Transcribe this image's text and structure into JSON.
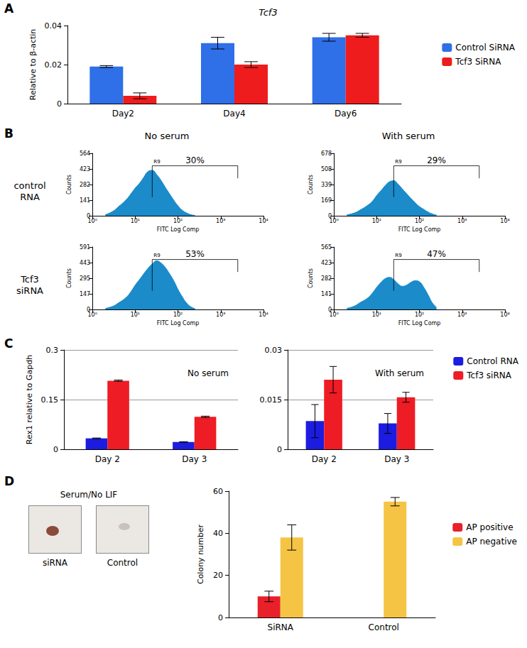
{
  "chart_data": [
    {
      "type": "bar",
      "title": "Tcf3",
      "y_label": "Relative to β-actin",
      "categories": [
        "Day2",
        "Day4",
        "Day6"
      ],
      "series": [
        {
          "name": "Control SiRNA",
          "color": "#2f6fe8",
          "values": [
            0.019,
            0.031,
            0.034
          ],
          "errors": [
            0.0005,
            0.003,
            0.002
          ]
        },
        {
          "name": "Tcf3 SiRNA",
          "color": "#ee1c1c",
          "values": [
            0.004,
            0.02,
            0.035
          ],
          "errors": [
            0.0015,
            0.0015,
            0.001
          ]
        }
      ],
      "ylim": [
        0,
        0.04
      ],
      "yticks": [
        0,
        0.02,
        0.04
      ],
      "grid": false,
      "legend": "right"
    },
    {
      "type": "area",
      "x_label": "FITC Log Comp",
      "y_label": "Counts",
      "color": "#1b8bc9",
      "log": "x",
      "x": [
        2,
        3,
        4,
        6,
        8,
        10,
        13,
        16,
        20,
        25,
        32,
        40,
        50,
        63,
        80,
        100,
        126,
        160,
        200,
        250
      ],
      "values": [
        10,
        40,
        80,
        140,
        200,
        250,
        300,
        350,
        400,
        410,
        370,
        320,
        260,
        200,
        140,
        90,
        50,
        25,
        10,
        3
      ],
      "xlim": [
        1,
        10000
      ],
      "xticks": [
        {
          "value": 1,
          "label": "10⁰"
        },
        {
          "value": 10,
          "label": "10¹"
        },
        {
          "value": 100,
          "label": "10²"
        },
        {
          "value": 1000,
          "label": "10³"
        },
        {
          "value": 10000,
          "label": "10⁴"
        }
      ],
      "ylim": [
        0,
        564
      ],
      "yticks": [
        0,
        141,
        282,
        423,
        564
      ],
      "grid": false,
      "gate": {
        "label": "R9",
        "range": [
          25,
          2500
        ],
        "text": "30%"
      }
    },
    {
      "type": "area",
      "x_label": "FITC Log Comp",
      "y_label": "Counts",
      "color": "#1b8bc9",
      "log": "x",
      "x": [
        2,
        3,
        4,
        6,
        8,
        10,
        13,
        16,
        20,
        25,
        32,
        40,
        50,
        63,
        80,
        100,
        126,
        160,
        200,
        250
      ],
      "values": [
        10,
        30,
        60,
        110,
        160,
        220,
        280,
        330,
        370,
        380,
        340,
        290,
        240,
        190,
        140,
        100,
        70,
        40,
        20,
        8
      ],
      "xlim": [
        1,
        10000
      ],
      "xticks": [
        {
          "value": 1,
          "label": "10⁰"
        },
        {
          "value": 10,
          "label": "10¹"
        },
        {
          "value": 100,
          "label": "10²"
        },
        {
          "value": 1000,
          "label": "10³"
        },
        {
          "value": 10000,
          "label": "10⁴"
        }
      ],
      "ylim": [
        0,
        678
      ],
      "yticks": [
        0,
        169,
        339,
        508,
        678
      ],
      "grid": false,
      "gate": {
        "label": "R9",
        "range": [
          25,
          2500
        ],
        "text": "29%"
      }
    },
    {
      "type": "area",
      "x_label": "FITC Log Comp",
      "y_label": "Counts",
      "color": "#1b8bc9",
      "log": "x",
      "x": [
        2,
        3,
        4,
        6,
        8,
        10,
        13,
        16,
        20,
        25,
        32,
        40,
        50,
        63,
        80,
        100,
        126,
        160,
        200,
        250
      ],
      "values": [
        10,
        30,
        60,
        110,
        170,
        230,
        290,
        340,
        390,
        430,
        460,
        440,
        400,
        340,
        270,
        190,
        120,
        60,
        25,
        8
      ],
      "xlim": [
        1,
        10000
      ],
      "xticks": [
        {
          "value": 1,
          "label": "10⁰"
        },
        {
          "value": 10,
          "label": "10¹"
        },
        {
          "value": 100,
          "label": "10²"
        },
        {
          "value": 1000,
          "label": "10³"
        },
        {
          "value": 10000,
          "label": "10⁴"
        }
      ],
      "ylim": [
        0,
        591
      ],
      "yticks": [
        0,
        147,
        295,
        443,
        591
      ],
      "grid": false,
      "gate": {
        "label": "R9",
        "range": [
          25,
          2500
        ],
        "text": "53%"
      }
    },
    {
      "type": "area",
      "x_label": "FITC Log Comp",
      "y_label": "Counts",
      "color": "#1b8bc9",
      "log": "x",
      "x": [
        2,
        3,
        4,
        6,
        8,
        10,
        13,
        16,
        20,
        25,
        32,
        40,
        50,
        63,
        80,
        100,
        126,
        160,
        200,
        250
      ],
      "values": [
        10,
        30,
        60,
        100,
        150,
        200,
        250,
        280,
        290,
        270,
        230,
        210,
        220,
        245,
        260,
        250,
        200,
        130,
        60,
        20
      ],
      "xlim": [
        1,
        10000
      ],
      "xticks": [
        {
          "value": 1,
          "label": "10⁰"
        },
        {
          "value": 10,
          "label": "10¹"
        },
        {
          "value": 100,
          "label": "10²"
        },
        {
          "value": 1000,
          "label": "10³"
        },
        {
          "value": 10000,
          "label": "10⁴"
        }
      ],
      "ylim": [
        0,
        565
      ],
      "yticks": [
        0,
        141,
        282,
        423,
        565
      ],
      "grid": false,
      "gate": {
        "label": "R9",
        "range": [
          25,
          2500
        ],
        "text": "47%"
      }
    },
    {
      "type": "bar",
      "subtitle": "No serum",
      "y_label": "Rex1 relative to Gapdh",
      "categories": [
        "Day 2",
        "Day 3"
      ],
      "series": [
        {
          "name": "Control RNA",
          "color": "#1c1ce0",
          "values": [
            0.033,
            0.022
          ],
          "errors": [
            0.001,
            0.001
          ]
        },
        {
          "name": "Tcf3 siRNA",
          "color": "#ee1c24",
          "values": [
            0.207,
            0.098
          ],
          "errors": [
            0.002,
            0.002
          ]
        }
      ],
      "ylim": [
        0,
        0.3
      ],
      "yticks": [
        0,
        0.15,
        0.3
      ],
      "grid": true
    },
    {
      "type": "bar",
      "subtitle": "With serum",
      "categories": [
        "Day 2",
        "Day 3"
      ],
      "series": [
        {
          "name": "Control RNA",
          "color": "#1c1ce0",
          "values": [
            0.0085,
            0.0078
          ],
          "errors": [
            0.005,
            0.003
          ]
        },
        {
          "name": "Tcf3 siRNA",
          "color": "#ee1c24",
          "values": [
            0.021,
            0.0157
          ],
          "errors": [
            0.004,
            0.0015
          ]
        }
      ],
      "ylim": [
        0,
        0.03
      ],
      "yticks": [
        0,
        0.015,
        0.03
      ],
      "grid": true,
      "legend": "right"
    },
    {
      "type": "bar",
      "y_label": "Colony number",
      "categories": [
        "SiRNA",
        "Control"
      ],
      "series": [
        {
          "name": "AP positive",
          "color": "#e8202a",
          "values": [
            10,
            null
          ],
          "errors": [
            2.5,
            null
          ]
        },
        {
          "name": "AP negative",
          "color": "#f5c444",
          "values": [
            38,
            55
          ],
          "errors": [
            6,
            2
          ]
        }
      ],
      "ylim": [
        0,
        60
      ],
      "yticks": [
        0,
        20,
        40,
        60
      ],
      "grid": false,
      "legend": "right"
    }
  ],
  "figure": {
    "panel_letters": [
      "A",
      "B",
      "C",
      "D"
    ],
    "panel_b": {
      "columns": [
        "No serum",
        "With serum"
      ],
      "rows": [
        "control RNA",
        "Tcf3 siRNA"
      ]
    },
    "panel_d_images": {
      "title": "Serum/No LIF",
      "labels": [
        "siRNA",
        "Control"
      ]
    }
  }
}
